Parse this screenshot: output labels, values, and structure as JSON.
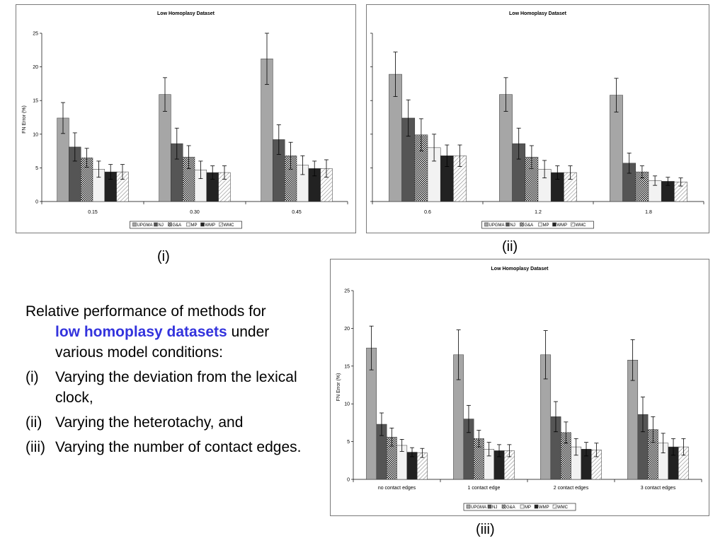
{
  "captions": {
    "i": "(i)",
    "ii": "(ii)",
    "iii": "(iii)"
  },
  "description": {
    "line1": "Relative performance of methods for",
    "highlight": "low homoplasy datasets",
    "line2_rest": " under",
    "line3": "various model conditions:",
    "items": [
      {
        "num": "(i)",
        "text": "Varying the deviation from the lexical clock,"
      },
      {
        "num": "(ii)",
        "text": "Varying the heterotachy, and"
      },
      {
        "num": "(iii)",
        "text": "Varying the number of contact edges."
      }
    ]
  },
  "colors": {
    "UPGMA": "#a6a6a6",
    "NJ": "#555555",
    "G&A": "checker",
    "MP": "#f2f2f2",
    "WMP": "#222222",
    "WMC": "diagonal"
  },
  "chart_data": [
    {
      "type": "bar",
      "title": "Low Homoplasy Dataset",
      "ylabel": "FN Error (%)",
      "ylim": [
        0,
        25
      ],
      "yticks": [
        "0",
        "5",
        "10",
        "15",
        "20",
        "25"
      ],
      "categories": [
        "0.15",
        "0.30",
        "0.45"
      ],
      "legend": [
        "UPGMA",
        "NJ",
        "G&A",
        "MP",
        "WMP",
        "WMC"
      ],
      "series": [
        {
          "name": "UPGMA",
          "values": [
            12.4,
            15.9,
            21.2
          ],
          "errors": [
            2.3,
            2.5,
            3.8
          ]
        },
        {
          "name": "NJ",
          "values": [
            8.1,
            8.6,
            9.2
          ],
          "errors": [
            2.1,
            2.3,
            2.2
          ]
        },
        {
          "name": "G&A",
          "values": [
            6.5,
            6.6,
            6.8
          ],
          "errors": [
            1.4,
            1.7,
            2.0
          ]
        },
        {
          "name": "MP",
          "values": [
            4.8,
            4.7,
            5.4
          ],
          "errors": [
            1.2,
            1.3,
            1.4
          ]
        },
        {
          "name": "WMP",
          "values": [
            4.4,
            4.3,
            4.9
          ],
          "errors": [
            1.1,
            1.0,
            1.1
          ]
        },
        {
          "name": "WMC",
          "values": [
            4.4,
            4.3,
            4.9
          ],
          "errors": [
            1.1,
            1.0,
            1.3
          ]
        }
      ],
      "legend_position": "bottom"
    },
    {
      "type": "bar",
      "title": "Low Homoplasy Dataset",
      "ylabel": "",
      "ylim": [
        0,
        25
      ],
      "yticks": [],
      "categories": [
        "0.6",
        "1.2",
        "1.8"
      ],
      "legend": [
        "UPGMA",
        "NJ",
        "G&A",
        "MP",
        "WMP",
        "WMC"
      ],
      "series": [
        {
          "name": "UPGMA",
          "values": [
            18.9,
            15.9,
            15.8
          ],
          "errors": [
            3.3,
            2.5,
            2.5
          ]
        },
        {
          "name": "NJ",
          "values": [
            12.4,
            8.6,
            5.7
          ],
          "errors": [
            2.7,
            2.3,
            1.5
          ]
        },
        {
          "name": "G&A",
          "values": [
            9.9,
            6.6,
            4.4
          ],
          "errors": [
            2.4,
            1.7,
            0.9
          ]
        },
        {
          "name": "MP",
          "values": [
            8.0,
            4.8,
            3.1
          ],
          "errors": [
            2.0,
            1.3,
            0.7
          ]
        },
        {
          "name": "WMP",
          "values": [
            6.8,
            4.3,
            3.0
          ],
          "errors": [
            1.6,
            1.0,
            0.6
          ]
        },
        {
          "name": "WMC",
          "values": [
            6.8,
            4.3,
            2.9
          ],
          "errors": [
            1.6,
            1.0,
            0.6
          ]
        }
      ],
      "legend_position": "bottom"
    },
    {
      "type": "bar",
      "title": "Low Homoplasy Dataset",
      "ylabel": "FN Error (%)",
      "ylim": [
        0,
        25
      ],
      "yticks": [
        "0",
        "5",
        "10",
        "15",
        "20",
        "25"
      ],
      "categories": [
        "no contact edges",
        "1 contact edge",
        "2 contact edges",
        "3 contact edges"
      ],
      "legend": [
        "UPGMA",
        "NJ",
        "G&A",
        "MP",
        "WMP",
        "WMC"
      ],
      "series": [
        {
          "name": "UPGMA",
          "values": [
            17.4,
            16.5,
            16.5,
            15.8
          ],
          "errors": [
            2.9,
            3.3,
            3.2,
            2.7
          ]
        },
        {
          "name": "NJ",
          "values": [
            7.3,
            8.0,
            8.3,
            8.6
          ],
          "errors": [
            1.5,
            1.8,
            2.0,
            2.3
          ]
        },
        {
          "name": "G&A",
          "values": [
            5.6,
            5.4,
            6.2,
            6.6
          ],
          "errors": [
            1.2,
            1.1,
            1.4,
            1.7
          ]
        },
        {
          "name": "MP",
          "values": [
            4.5,
            4.0,
            4.3,
            4.8
          ],
          "errors": [
            0.8,
            0.9,
            1.1,
            1.3
          ]
        },
        {
          "name": "WMP",
          "values": [
            3.6,
            3.8,
            4.0,
            4.3
          ],
          "errors": [
            0.6,
            0.8,
            0.9,
            1.1
          ]
        },
        {
          "name": "WMC",
          "values": [
            3.5,
            3.8,
            3.9,
            4.3
          ],
          "errors": [
            0.6,
            0.8,
            0.9,
            1.1
          ]
        }
      ],
      "legend_position": "bottom"
    }
  ]
}
